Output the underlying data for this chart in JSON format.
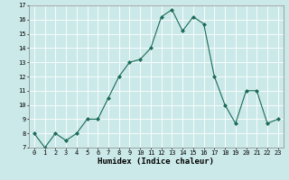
{
  "x": [
    0,
    1,
    2,
    3,
    4,
    5,
    6,
    7,
    8,
    9,
    10,
    11,
    12,
    13,
    14,
    15,
    16,
    17,
    18,
    19,
    20,
    21,
    22,
    23
  ],
  "y": [
    8,
    7,
    8,
    7.5,
    8,
    9,
    9,
    10.5,
    12,
    13,
    13.2,
    14,
    16.2,
    16.7,
    15.2,
    16.2,
    15.7,
    12,
    10,
    8.7,
    11,
    11,
    8.7,
    9
  ],
  "line_color": "#1a6b5a",
  "marker": "D",
  "marker_size": 2,
  "bg_color": "#cce9e9",
  "grid_color": "#ffffff",
  "xlabel": "Humidex (Indice chaleur)",
  "ylim": [
    7,
    17
  ],
  "xlim": [
    -0.5,
    23.5
  ],
  "yticks": [
    7,
    8,
    9,
    10,
    11,
    12,
    13,
    14,
    15,
    16,
    17
  ],
  "xticks": [
    0,
    1,
    2,
    3,
    4,
    5,
    6,
    7,
    8,
    9,
    10,
    11,
    12,
    13,
    14,
    15,
    16,
    17,
    18,
    19,
    20,
    21,
    22,
    23
  ],
  "tick_fontsize": 5,
  "xlabel_fontsize": 6.5
}
